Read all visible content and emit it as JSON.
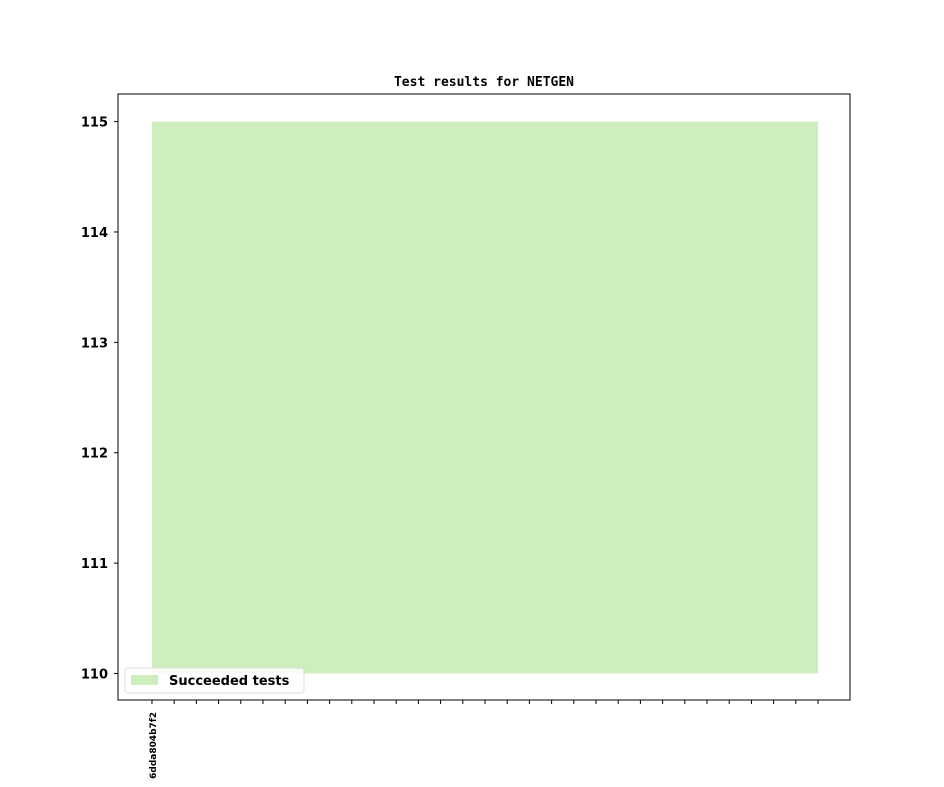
{
  "chart_data": {
    "type": "area",
    "title": "Test results for NETGEN",
    "xlabel": "",
    "ylabel": "",
    "x_tick_labels": [
      "6dda804b7f2",
      "",
      "",
      "",
      "",
      "",
      "",
      "",
      "",
      "",
      "",
      "",
      "",
      "",
      "",
      "",
      "",
      "",
      "",
      "",
      "",
      "",
      "",
      "",
      "",
      "",
      "",
      "",
      "",
      "",
      ""
    ],
    "series": [
      {
        "name": "Succeeded tests",
        "color": "#cfeebe",
        "values": [
          115,
          115,
          115,
          115,
          115,
          115,
          115,
          115,
          115,
          115,
          115,
          115,
          115,
          115,
          115,
          115,
          115,
          115,
          115,
          115,
          115,
          115,
          115,
          115,
          115,
          115,
          115,
          115,
          115,
          115,
          115
        ]
      }
    ],
    "baseline": 110,
    "ylim": [
      109.76,
      115.25
    ],
    "xlim": [
      -1.53,
      31.44
    ],
    "yticks": [
      110,
      111,
      112,
      113,
      114,
      115
    ],
    "grid": false,
    "legend": "lower-left"
  }
}
